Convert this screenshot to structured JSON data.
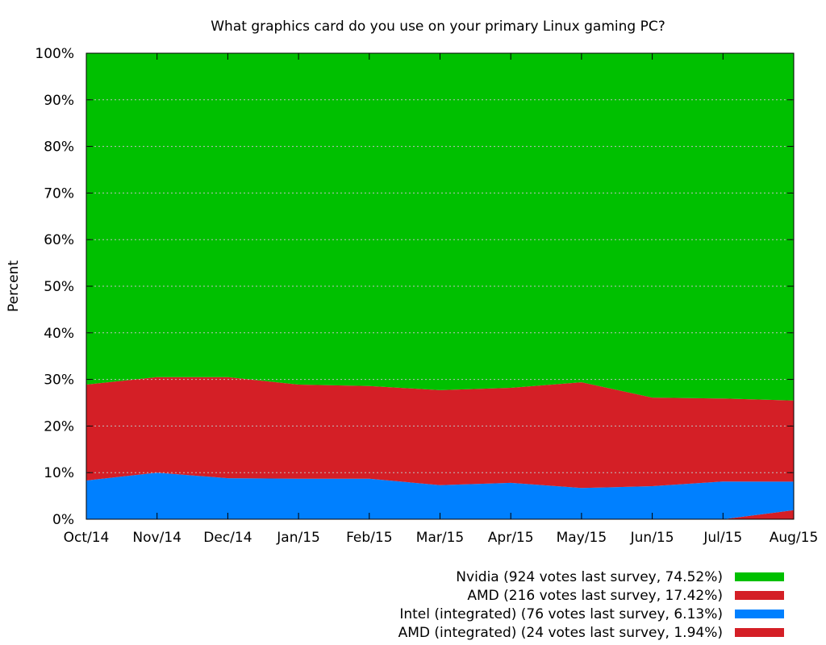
{
  "chart_data": {
    "type": "area",
    "stacked": true,
    "title": "What graphics card do you use on your primary Linux gaming PC?",
    "ylabel": "Percent",
    "xlabel": "",
    "ylim": [
      0,
      100
    ],
    "grid": true,
    "legend_position": "bottom-right",
    "categories": [
      "Oct/14",
      "Nov/14",
      "Dec/14",
      "Jan/15",
      "Feb/15",
      "Mar/15",
      "Apr/15",
      "May/15",
      "Jun/15",
      "Jul/15",
      "Aug/15"
    ],
    "x": [
      0,
      1,
      2,
      3,
      4,
      5,
      6,
      7,
      8,
      9,
      10
    ],
    "x_tick_labels": [
      "Oct/14",
      "Nov/14",
      "Dec/14",
      "Jan/15",
      "Feb/15",
      "Mar/15",
      "Apr/15",
      "May/15",
      "Jun/15",
      "Jul/15",
      "Aug/15"
    ],
    "y_ticks": [
      0,
      10,
      20,
      30,
      40,
      50,
      60,
      70,
      80,
      90,
      100
    ],
    "y_tick_labels": [
      "0%",
      "10%",
      "20%",
      "30%",
      "40%",
      "50%",
      "60%",
      "70%",
      "80%",
      "90%",
      "100%"
    ],
    "series": [
      {
        "name": "AMD (integrated)",
        "legend": "AMD (integrated) (24 votes last survey, 1.94%)",
        "color": "#d41f26",
        "values": [
          0,
          0,
          0,
          0,
          0,
          0,
          0,
          0,
          0,
          0,
          1.94
        ]
      },
      {
        "name": "Intel (integrated)",
        "legend": "Intel (integrated) (76 votes last survey, 6.13%)",
        "color": "#0080ff",
        "values": [
          8.3,
          10.0,
          8.8,
          8.7,
          8.7,
          7.3,
          7.8,
          6.7,
          7.1,
          8.1,
          6.13
        ]
      },
      {
        "name": "AMD",
        "legend": "AMD (216 votes last survey, 17.42%)",
        "color": "#d41f26",
        "values": [
          20.6,
          20.5,
          21.7,
          20.2,
          19.9,
          20.4,
          20.4,
          22.7,
          19.0,
          17.8,
          17.42
        ]
      },
      {
        "name": "Nvidia",
        "legend": "Nvidia (924 votes last survey, 74.52%)",
        "color": "#00c000",
        "values": [
          71.1,
          69.5,
          69.5,
          71.1,
          71.4,
          72.3,
          71.8,
          70.6,
          73.9,
          74.1,
          74.52
        ]
      }
    ]
  }
}
